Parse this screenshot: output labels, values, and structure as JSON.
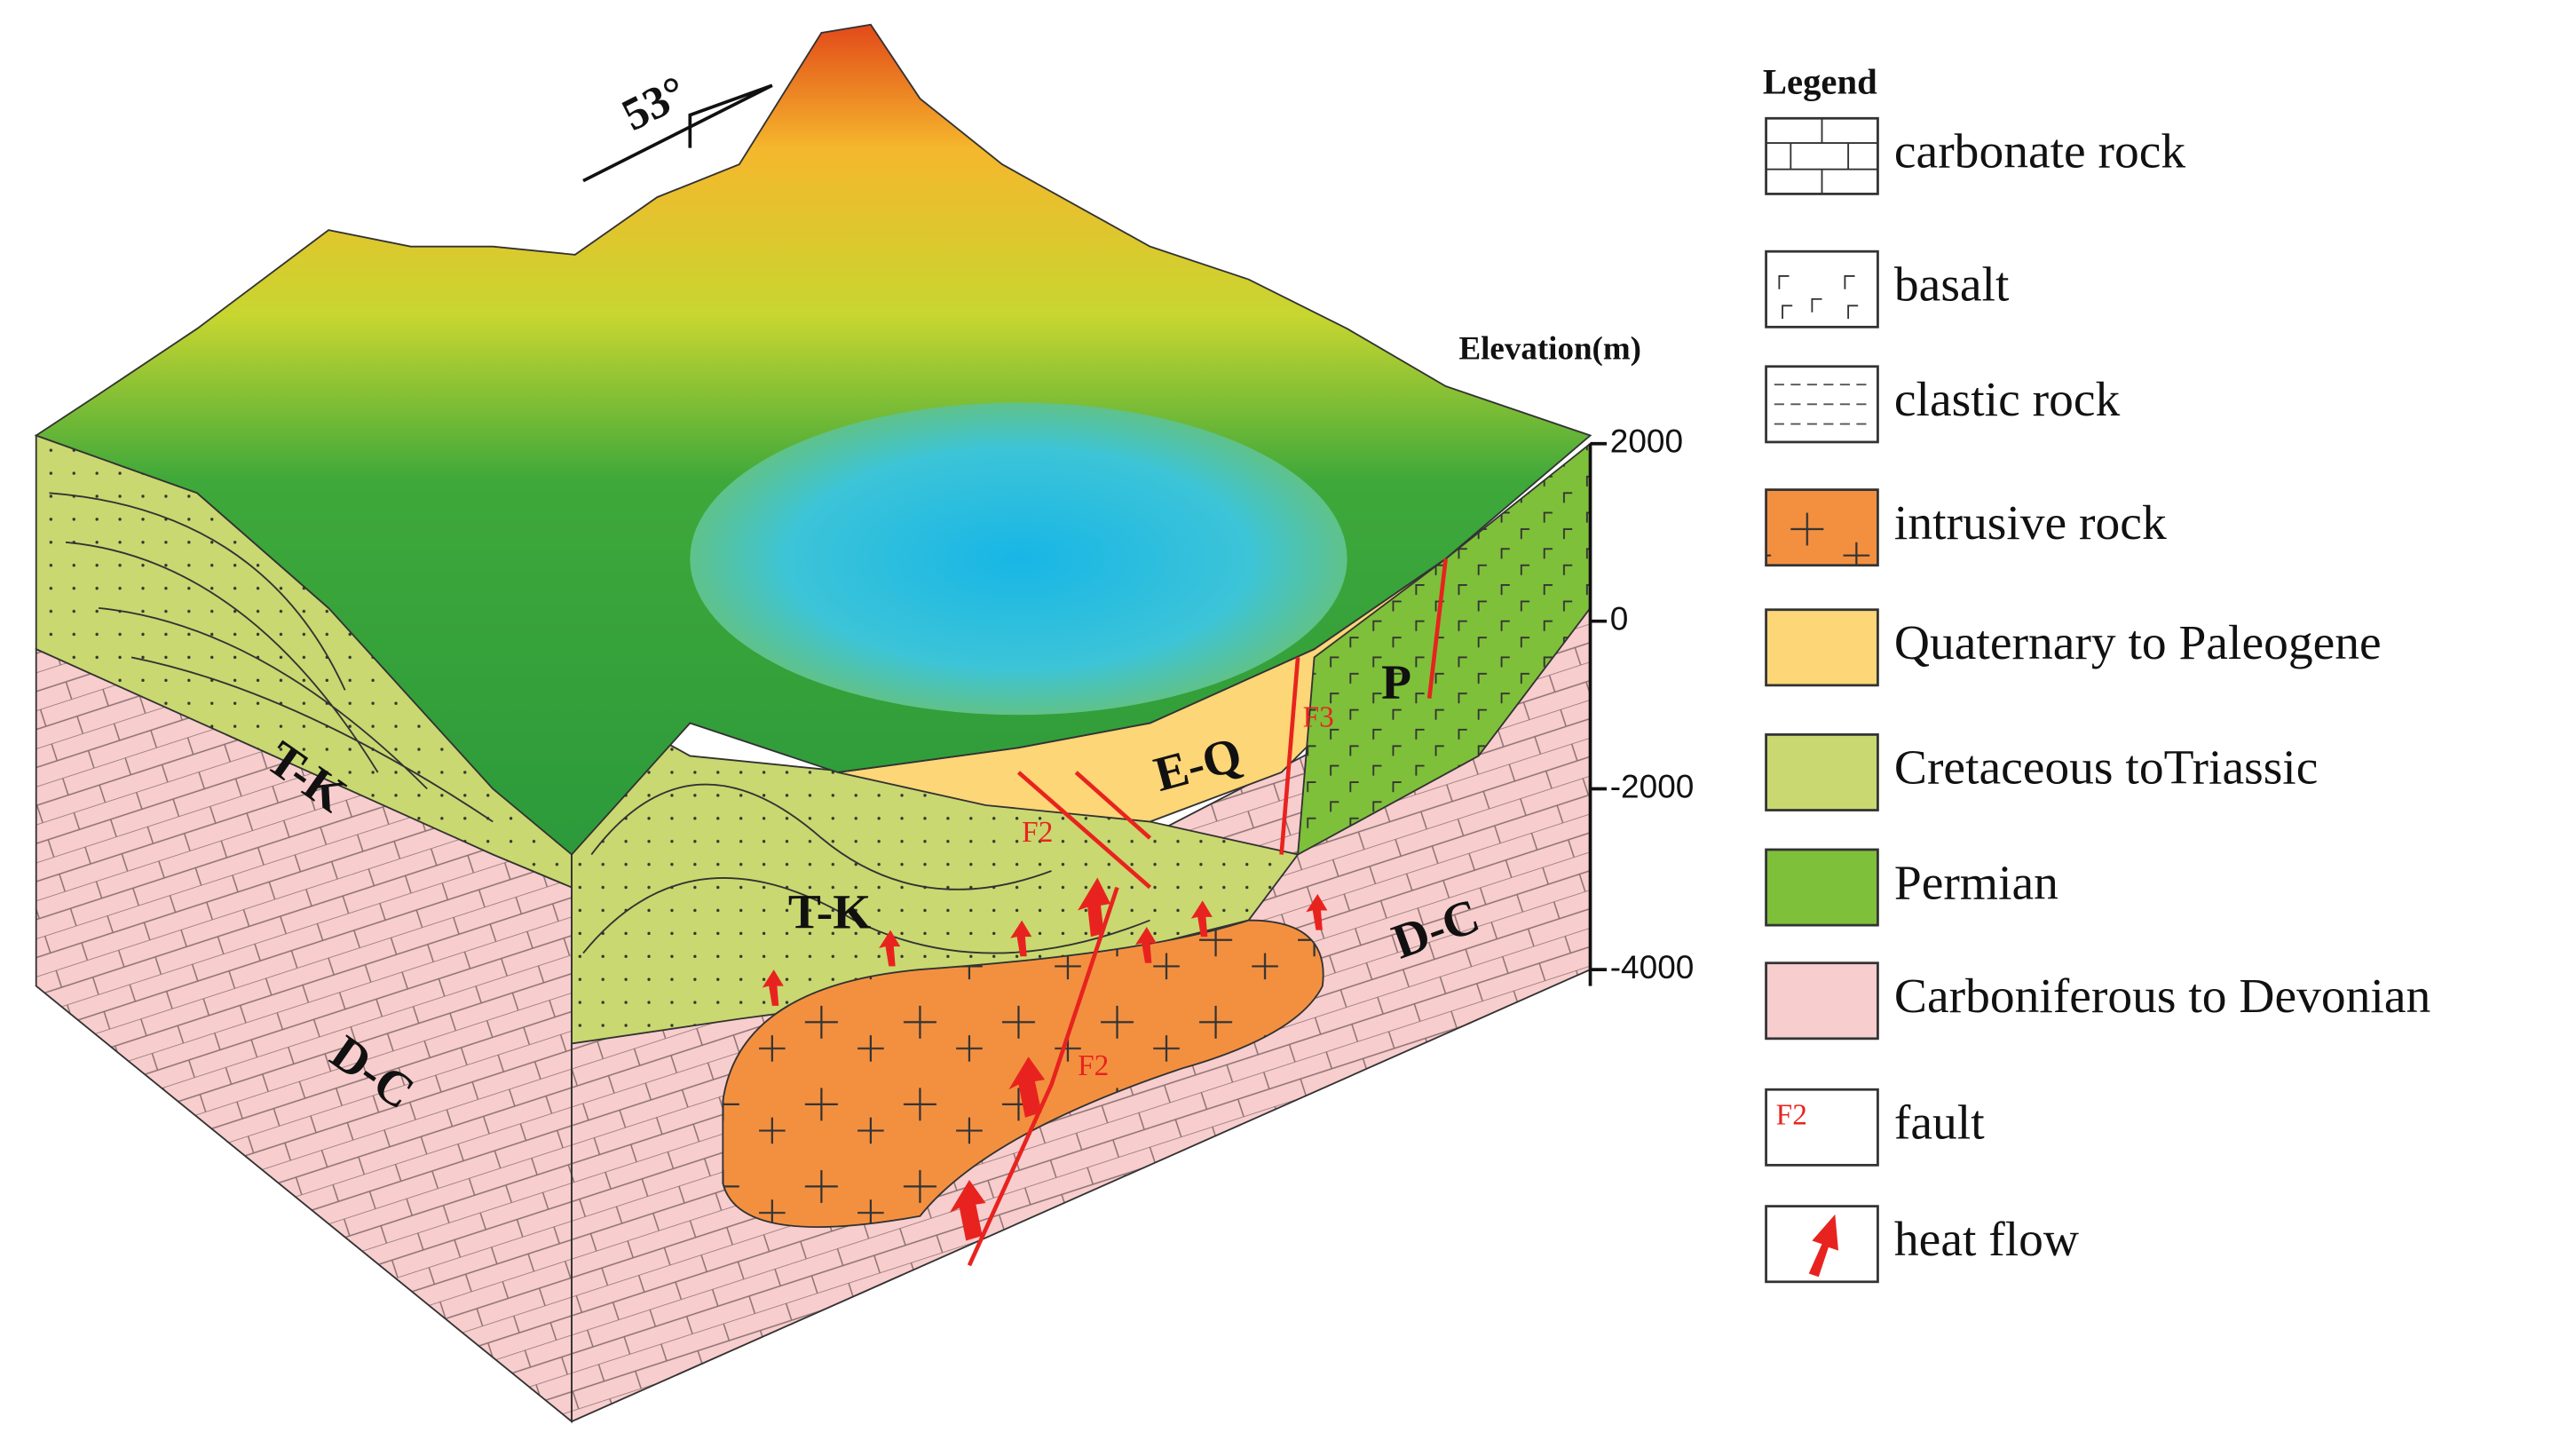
{
  "diagram": {
    "orientation": "53°",
    "elevation_label": "Elevation(m)",
    "elevation_ticks": [
      "2000",
      "0",
      "-2000",
      "-4000"
    ],
    "unit_labels": [
      "T-K",
      "T-K",
      "D-C",
      "D-C",
      "E-Q",
      "P"
    ],
    "fault_labels": [
      "F2",
      "F2",
      "F3"
    ]
  },
  "legend": {
    "title": "Legend",
    "items": [
      "carbonate rock",
      "basalt",
      "clastic rock",
      "intrusive rock",
      "Quaternary to Paleogene",
      "Cretaceous toTriassic",
      "Permian",
      "Carboniferous to Devonian",
      "fault",
      "heat flow"
    ],
    "fault_symbol": "F2"
  }
}
